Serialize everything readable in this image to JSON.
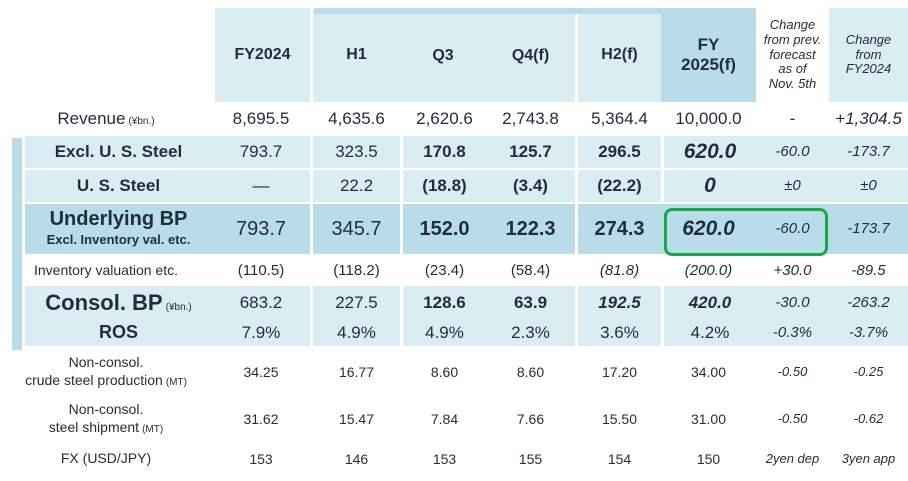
{
  "headers": [
    "",
    "FY2024",
    "H1",
    "Q3",
    "Q4(f)",
    "H2(f)",
    "FY\n2025(f)",
    "Change\nfrom prev.\nforecast\nas of\nNov. 5th",
    "Change\nfrom\nFY2024"
  ],
  "rows": [
    {
      "label": "Revenue",
      "unit": "(¥bn.)",
      "values": [
        "8,695.5",
        "4,635.6",
        "2,620.6",
        "2,743.8",
        "5,364.4",
        "10,000.0",
        "-",
        "+1,304.5"
      ]
    },
    {
      "label": "Excl. U. S. Steel",
      "values": [
        "793.7",
        "323.5",
        "170.8",
        "125.7",
        "296.5",
        "620.0",
        "-60.0",
        "-173.7"
      ]
    },
    {
      "label": "U. S. Steel",
      "values": [
        "—",
        "22.2",
        "(18.8)",
        "(3.4)",
        "(22.2)",
        "0",
        "±0",
        "±0"
      ]
    },
    {
      "label": "Underlying BP",
      "sublabel": "Excl. Inventory val. etc.",
      "values": [
        "793.7",
        "345.7",
        "152.0",
        "122.3",
        "274.3",
        "620.0",
        "-60.0",
        "-173.7"
      ]
    },
    {
      "label": "Inventory valuation etc.",
      "values": [
        "(110.5)",
        "(118.2)",
        "(23.4)",
        "(58.4)",
        "(81.8)",
        "(200.0)",
        "+30.0",
        "-89.5"
      ]
    },
    {
      "label": "Consol. BP",
      "unit": "(¥bn.)",
      "values": [
        "683.2",
        "227.5",
        "128.6",
        "63.9",
        "192.5",
        "420.0",
        "-30.0",
        "-263.2"
      ]
    },
    {
      "label": "ROS",
      "values": [
        "7.9%",
        "4.9%",
        "4.9%",
        "2.3%",
        "3.6%",
        "4.2%",
        "-0.3%",
        "-3.7%"
      ]
    },
    {
      "label": "Non-consol.",
      "sublabel": "crude steel production",
      "unit": "(MT)",
      "values": [
        "34.25",
        "16.77",
        "8.60",
        "8.60",
        "17.20",
        "34.00",
        "-0.50",
        "-0.25"
      ]
    },
    {
      "label": "Non-consol.",
      "sublabel": "steel shipment",
      "unit": "(MT)",
      "values": [
        "31.62",
        "15.47",
        "7.84",
        "7.66",
        "15.50",
        "31.00",
        "-0.50",
        "-0.62"
      ]
    },
    {
      "label": "FX (USD/JPY)",
      "values": [
        "153",
        "146",
        "153",
        "155",
        "154",
        "150",
        "2yen dep",
        "3yen app"
      ]
    }
  ],
  "highlight_color": "#1aa84a",
  "colors": {
    "light": "#daedf3",
    "dark": "#b9dde8"
  }
}
